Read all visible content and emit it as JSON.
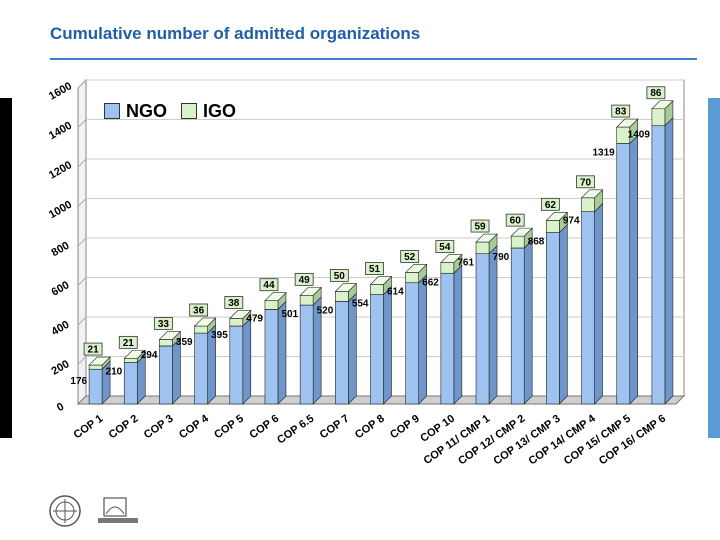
{
  "header": {
    "title": "Cumulative number of admitted organizations"
  },
  "chart_data": {
    "type": "bar",
    "stacked": true,
    "title": "Cumulative number of admitted organizations",
    "categories": [
      "COP 1",
      "COP 2",
      "COP 3",
      "COP 4",
      "COP 5",
      "COP 6",
      "COP 6.5",
      "COP 7",
      "COP 8",
      "COP 9",
      "COP 10",
      "COP 11/ CMP 1",
      "COP 12/ CMP 2",
      "COP 13/ CMP 3",
      "COP 14/ CMP 4",
      "COP 15/ CMP 5",
      "COP 16/ CMP 6"
    ],
    "series": [
      {
        "name": "NGO",
        "color": "#9ec3f0",
        "values": [
          176,
          210,
          294,
          359,
          395,
          479,
          501,
          520,
          554,
          614,
          662,
          761,
          790,
          868,
          974,
          1319,
          1409
        ]
      },
      {
        "name": "IGO",
        "color": "#d9f2c9",
        "values": [
          21,
          21,
          33,
          36,
          38,
          44,
          49,
          50,
          51,
          52,
          54,
          59,
          60,
          62,
          70,
          83,
          86
        ]
      }
    ],
    "y_ticks": [
      0,
      200,
      400,
      600,
      800,
      1000,
      1200,
      1400,
      1600
    ],
    "ylim": [
      0,
      1600
    ],
    "legend": [
      "NGO",
      "IGO"
    ],
    "legend_position": "top-left"
  }
}
